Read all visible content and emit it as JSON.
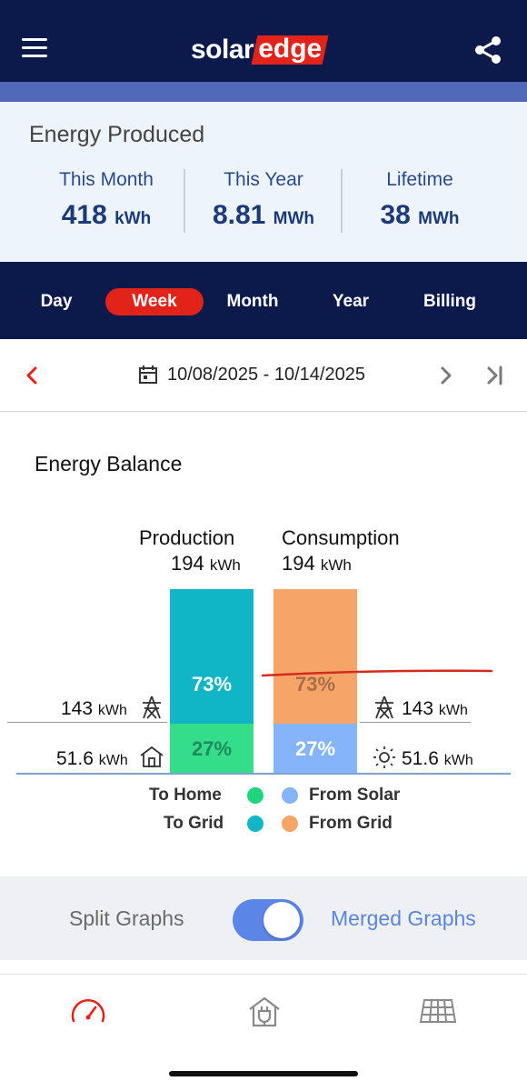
{
  "header": {
    "logo_left": "solar",
    "logo_right": "edge",
    "menu_icon": "hamburger-icon",
    "share_icon": "share-icon",
    "colors": {
      "navy": "#0b1a4a",
      "accent_band": "#5069b8",
      "brand_red": "#e2231a"
    }
  },
  "produced": {
    "title": "Energy Produced",
    "stats": [
      {
        "label": "This Month",
        "value": "418",
        "unit": "kWh"
      },
      {
        "label": "This Year",
        "value": "8.81",
        "unit": "MWh"
      },
      {
        "label": "Lifetime",
        "value": "38",
        "unit": "MWh"
      }
    ]
  },
  "tabs": {
    "items": [
      "Day",
      "Week",
      "Month",
      "Year",
      "Billing"
    ],
    "selected": "Week"
  },
  "datenav": {
    "range": "10/08/2025 - 10/14/2025",
    "prev_icon": "chevron-left-icon",
    "next_icon": "chevron-right-icon",
    "last_icon": "skip-to-end-icon",
    "calendar_icon": "calendar-icon"
  },
  "balance": {
    "title": "Energy Balance",
    "production": {
      "label": "Production",
      "value": "194",
      "unit": "kWh"
    },
    "consumption": {
      "label": "Consumption",
      "value": "194",
      "unit": "kWh"
    },
    "left": [
      {
        "value": "143",
        "unit": "kWh",
        "icon": "power-tower-icon"
      },
      {
        "value": "51.6",
        "unit": "kWh",
        "icon": "house-icon"
      }
    ],
    "right": [
      {
        "value": "143",
        "unit": "kWh",
        "icon": "power-tower-icon"
      },
      {
        "value": "51.6",
        "unit": "kWh",
        "icon": "sun-icon"
      }
    ],
    "production_split": [
      {
        "label": "73%",
        "share": 0.73,
        "color": "#11b6c6"
      },
      {
        "label": "27%",
        "share": 0.27,
        "color": "#34dd8a"
      }
    ],
    "consumption_split": [
      {
        "label": "73%",
        "share": 0.73,
        "color": "#f7a469"
      },
      {
        "label": "27%",
        "share": 0.27,
        "color": "#86b4fa"
      }
    ],
    "legend": [
      {
        "label": "To Home",
        "color": "#1fd47e"
      },
      {
        "label": "From Solar",
        "color": "#86b4fa"
      },
      {
        "label": "To Grid",
        "color": "#11b6c6"
      },
      {
        "label": "From Grid",
        "color": "#f7a469"
      }
    ],
    "annotation_color": "#d52b1e"
  },
  "toggle": {
    "left_label": "Split Graphs",
    "right_label": "Merged Graphs",
    "state": "merged"
  },
  "bottom_nav": [
    {
      "icon": "dashboard-gauge-icon",
      "active": true
    },
    {
      "icon": "house-plug-icon",
      "active": false
    },
    {
      "icon": "solar-panel-layout-icon",
      "active": false
    }
  ]
}
